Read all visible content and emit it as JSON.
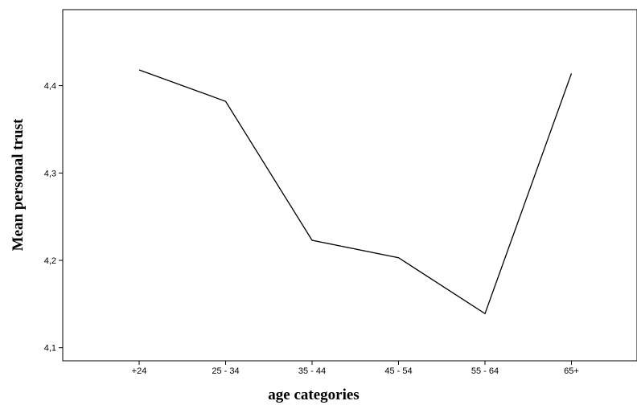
{
  "chart_data": {
    "type": "line",
    "categories": [
      "+24",
      "25 - 34",
      "35 - 44",
      "45 - 54",
      "55 - 64",
      "65+"
    ],
    "series": [
      {
        "values": [
          4.418,
          4.382,
          4.223,
          4.203,
          4.139,
          4.414
        ]
      }
    ],
    "yticks": [
      {
        "value": 4.1,
        "label": "4,1"
      },
      {
        "value": 4.2,
        "label": "4,2"
      },
      {
        "value": 4.3,
        "label": "4,3"
      },
      {
        "value": 4.4,
        "label": "4,4"
      }
    ],
    "ylim": [
      4.085,
      4.487
    ],
    "xlabel": "age categories",
    "ylabel": "Mean personal trust",
    "grid": false,
    "line_color": "#000000"
  }
}
